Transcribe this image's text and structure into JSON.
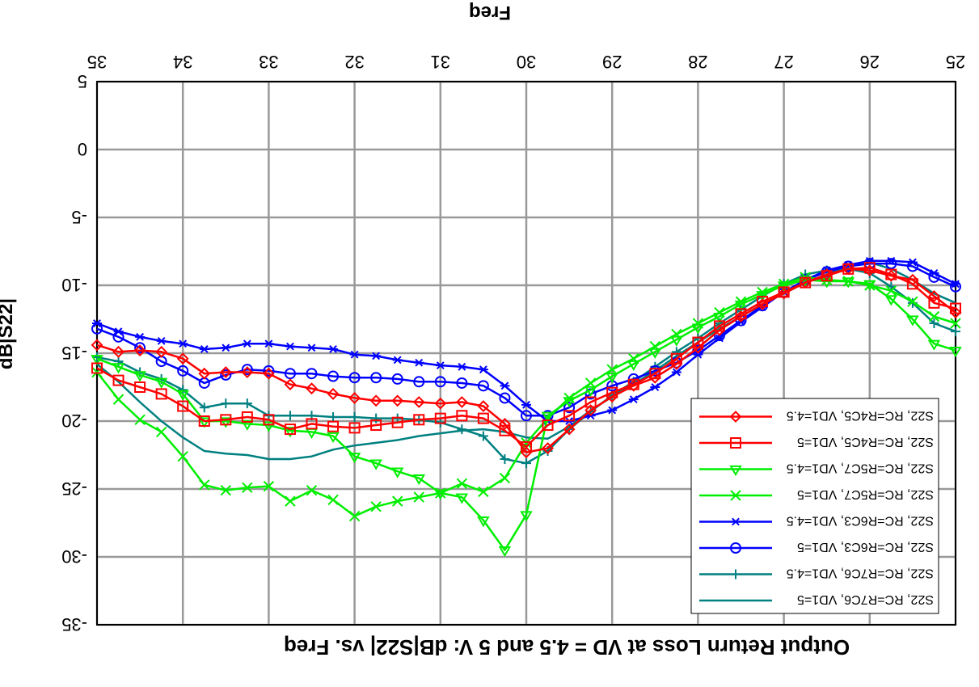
{
  "chart_data": {
    "type": "line",
    "orientation": "rotated-180",
    "title": "Output Return Loss at VD = 4.5 and 5 V: dB|S22| vs. Freq",
    "xlabel": "Freq",
    "ylabel": "dB|S22|",
    "xlim": [
      25,
      35
    ],
    "ylim": [
      -35,
      5
    ],
    "x_ticks": [
      "25",
      "26",
      "27",
      "28",
      "29",
      "30",
      "31",
      "32",
      "33",
      "34",
      "35"
    ],
    "y_ticks": [
      "-35",
      "-30",
      "-25",
      "-20",
      "-15",
      "-10",
      "-5",
      "0",
      "5"
    ],
    "grid": true,
    "legend_position": "bottom-left",
    "x": [
      25.0,
      25.25,
      25.5,
      25.75,
      26.0,
      26.25,
      26.5,
      26.75,
      27.0,
      27.25,
      27.5,
      27.75,
      28.0,
      28.25,
      28.5,
      28.75,
      29.0,
      29.25,
      29.5,
      29.75,
      30.0,
      30.25,
      30.5,
      30.75,
      31.0,
      31.25,
      31.5,
      31.75,
      32.0,
      32.25,
      32.5,
      32.75,
      33.0,
      33.25,
      33.5,
      33.75,
      34.0,
      34.25,
      34.5,
      34.75,
      35.0
    ],
    "series": [
      {
        "name": "S22, RC=R7C6, VD1=5",
        "color": "#008080",
        "marker": "none",
        "values": [
          -11.3,
          -10.6,
          -9.6,
          -8.8,
          -8.3,
          -8.6,
          -9.2,
          -9.8,
          -10.6,
          -11.4,
          -12.3,
          -13.2,
          -14.2,
          -15.2,
          -16.3,
          -17.3,
          -18.2,
          -19.2,
          -20.4,
          -21.3,
          -21.2,
          -20.8,
          -20.6,
          -20.7,
          -20.9,
          -21.1,
          -21.4,
          -21.6,
          -21.8,
          -22.1,
          -22.6,
          -22.8,
          -22.8,
          -22.5,
          -22.4,
          -22.2,
          -21.2,
          -20.0,
          -18.6,
          -17.1,
          -15.8
        ]
      },
      {
        "name": "S22, RC=R7C6, VD1=4.5",
        "color": "#008080",
        "marker": "plus",
        "values": [
          -13.4,
          -12.8,
          -11.3,
          -10.1,
          -9.1,
          -8.8,
          -8.9,
          -9.2,
          -9.9,
          -10.8,
          -11.8,
          -12.8,
          -13.9,
          -14.9,
          -16.0,
          -17.1,
          -18.1,
          -19.3,
          -20.6,
          -22.2,
          -23.1,
          -22.8,
          -21.1,
          -20.6,
          -20.1,
          -19.9,
          -19.8,
          -19.8,
          -19.7,
          -19.7,
          -19.6,
          -19.6,
          -19.6,
          -18.7,
          -18.7,
          -19.0,
          -17.7,
          -16.9,
          -16.4,
          -15.6,
          -15.3
        ]
      },
      {
        "name": "S22, RC=R6C3, VD1=5",
        "color": "#0000ff",
        "marker": "circle",
        "values": [
          -10.1,
          -9.4,
          -8.6,
          -8.4,
          -8.4,
          -8.6,
          -9.0,
          -9.6,
          -10.5,
          -11.5,
          -12.6,
          -13.7,
          -14.8,
          -15.7,
          -16.3,
          -16.9,
          -17.4,
          -18.0,
          -19.0,
          -19.6,
          -19.6,
          -18.3,
          -17.4,
          -17.2,
          -17.1,
          -17.1,
          -16.9,
          -16.8,
          -16.8,
          -16.7,
          -16.5,
          -16.5,
          -16.3,
          -16.2,
          -16.6,
          -17.2,
          -16.3,
          -15.6,
          -14.6,
          -13.8,
          -13.2
        ]
      },
      {
        "name": "S22, RC=R6C3, VD1=4.5",
        "color": "#0000ff",
        "marker": "star",
        "values": [
          -9.9,
          -9.1,
          -8.3,
          -8.2,
          -8.2,
          -8.5,
          -8.9,
          -9.6,
          -10.5,
          -11.6,
          -12.7,
          -13.9,
          -15.1,
          -16.4,
          -17.5,
          -18.4,
          -19.2,
          -19.6,
          -20.0,
          -20.0,
          -18.8,
          -17.4,
          -16.2,
          -16.0,
          -15.9,
          -15.7,
          -15.5,
          -15.2,
          -15.1,
          -14.7,
          -14.6,
          -14.5,
          -14.3,
          -14.3,
          -14.6,
          -14.7,
          -14.3,
          -14.1,
          -13.8,
          -13.4,
          -12.8
        ]
      },
      {
        "name": "S22, RC=R5C7, VD1=5",
        "color": "#00ee00",
        "marker": "x",
        "values": [
          -12.8,
          -12.3,
          -11.2,
          -10.4,
          -10.0,
          -9.7,
          -9.6,
          -9.4,
          -9.9,
          -10.5,
          -11.2,
          -12.0,
          -12.8,
          -13.6,
          -14.5,
          -15.4,
          -16.2,
          -17.2,
          -18.3,
          -19.8,
          -21.6,
          -24.2,
          -25.2,
          -24.6,
          -25.3,
          -25.6,
          -25.9,
          -26.3,
          -27.0,
          -25.8,
          -25.1,
          -25.9,
          -24.8,
          -24.9,
          -25.1,
          -24.7,
          -22.6,
          -20.8,
          -19.9,
          -18.4,
          -16.4
        ]
      },
      {
        "name": "S22, RC=R5C7, VD1=4.5",
        "color": "#00ee00",
        "marker": "triangle",
        "values": [
          -14.8,
          -14.3,
          -12.5,
          -11.0,
          -9.9,
          -9.7,
          -9.7,
          -9.6,
          -10.0,
          -10.7,
          -11.4,
          -12.3,
          -13.1,
          -14.0,
          -14.9,
          -15.8,
          -16.7,
          -17.7,
          -18.5,
          -19.6,
          -26.9,
          -29.5,
          -27.3,
          -25.6,
          -25.3,
          -24.2,
          -23.7,
          -23.1,
          -22.6,
          -21.1,
          -20.8,
          -20.7,
          -20.3,
          -20.2,
          -20.0,
          -20.0,
          -18.0,
          -17.1,
          -16.6,
          -16.0,
          -15.4
        ]
      },
      {
        "name": "S22, RC=R4C5, VD1=5",
        "color": "#ff0000",
        "marker": "square",
        "values": [
          -11.7,
          -11.3,
          -9.9,
          -9.2,
          -8.7,
          -8.8,
          -9.3,
          -9.8,
          -10.5,
          -11.2,
          -12.1,
          -13.0,
          -14.2,
          -15.4,
          -16.5,
          -17.3,
          -17.9,
          -18.6,
          -19.6,
          -20.3,
          -21.9,
          -20.7,
          -19.8,
          -19.6,
          -19.8,
          -19.9,
          -20.1,
          -20.3,
          -20.5,
          -20.4,
          -20.2,
          -20.6,
          -19.9,
          -19.7,
          -19.9,
          -20.0,
          -18.9,
          -18.0,
          -17.5,
          -17.0,
          -16.1
        ]
      },
      {
        "name": "S22, RC=R4C5, VD1=4.5",
        "color": "#ff0000",
        "marker": "diamond",
        "values": [
          -12.0,
          -10.8,
          -9.6,
          -9.3,
          -8.9,
          -8.8,
          -9.2,
          -9.8,
          -10.6,
          -11.4,
          -12.3,
          -13.3,
          -14.6,
          -15.8,
          -16.8,
          -17.4,
          -18.2,
          -19.2,
          -20.6,
          -22.0,
          -22.3,
          -20.2,
          -18.9,
          -18.6,
          -18.7,
          -18.6,
          -18.5,
          -18.5,
          -18.3,
          -18.0,
          -17.6,
          -17.3,
          -16.5,
          -16.4,
          -16.4,
          -16.5,
          -15.4,
          -14.9,
          -14.8,
          -14.9,
          -14.4
        ]
      }
    ]
  }
}
